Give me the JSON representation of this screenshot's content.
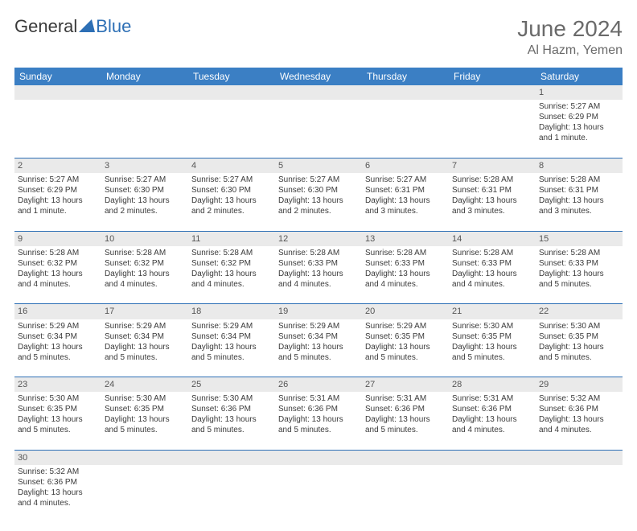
{
  "logo": {
    "text1": "General",
    "text2": "Blue"
  },
  "title": "June 2024",
  "location": "Al Hazm, Yemen",
  "weekdays": [
    "Sunday",
    "Monday",
    "Tuesday",
    "Wednesday",
    "Thursday",
    "Friday",
    "Saturday"
  ],
  "colors": {
    "header_bg": "#3b7fc4",
    "header_text": "#ffffff",
    "daynum_bg": "#eaeaea",
    "cell_border": "#2d6fb5",
    "text": "#3a3a3a",
    "title_text": "#6a6a6a"
  },
  "weeks": [
    {
      "nums": [
        "",
        "",
        "",
        "",
        "",
        "",
        "1"
      ],
      "cells": [
        "",
        "",
        "",
        "",
        "",
        "",
        "Sunrise: 5:27 AM\nSunset: 6:29 PM\nDaylight: 13 hours and 1 minute."
      ]
    },
    {
      "nums": [
        "2",
        "3",
        "4",
        "5",
        "6",
        "7",
        "8"
      ],
      "cells": [
        "Sunrise: 5:27 AM\nSunset: 6:29 PM\nDaylight: 13 hours and 1 minute.",
        "Sunrise: 5:27 AM\nSunset: 6:30 PM\nDaylight: 13 hours and 2 minutes.",
        "Sunrise: 5:27 AM\nSunset: 6:30 PM\nDaylight: 13 hours and 2 minutes.",
        "Sunrise: 5:27 AM\nSunset: 6:30 PM\nDaylight: 13 hours and 2 minutes.",
        "Sunrise: 5:27 AM\nSunset: 6:31 PM\nDaylight: 13 hours and 3 minutes.",
        "Sunrise: 5:28 AM\nSunset: 6:31 PM\nDaylight: 13 hours and 3 minutes.",
        "Sunrise: 5:28 AM\nSunset: 6:31 PM\nDaylight: 13 hours and 3 minutes."
      ]
    },
    {
      "nums": [
        "9",
        "10",
        "11",
        "12",
        "13",
        "14",
        "15"
      ],
      "cells": [
        "Sunrise: 5:28 AM\nSunset: 6:32 PM\nDaylight: 13 hours and 4 minutes.",
        "Sunrise: 5:28 AM\nSunset: 6:32 PM\nDaylight: 13 hours and 4 minutes.",
        "Sunrise: 5:28 AM\nSunset: 6:32 PM\nDaylight: 13 hours and 4 minutes.",
        "Sunrise: 5:28 AM\nSunset: 6:33 PM\nDaylight: 13 hours and 4 minutes.",
        "Sunrise: 5:28 AM\nSunset: 6:33 PM\nDaylight: 13 hours and 4 minutes.",
        "Sunrise: 5:28 AM\nSunset: 6:33 PM\nDaylight: 13 hours and 4 minutes.",
        "Sunrise: 5:28 AM\nSunset: 6:33 PM\nDaylight: 13 hours and 5 minutes."
      ]
    },
    {
      "nums": [
        "16",
        "17",
        "18",
        "19",
        "20",
        "21",
        "22"
      ],
      "cells": [
        "Sunrise: 5:29 AM\nSunset: 6:34 PM\nDaylight: 13 hours and 5 minutes.",
        "Sunrise: 5:29 AM\nSunset: 6:34 PM\nDaylight: 13 hours and 5 minutes.",
        "Sunrise: 5:29 AM\nSunset: 6:34 PM\nDaylight: 13 hours and 5 minutes.",
        "Sunrise: 5:29 AM\nSunset: 6:34 PM\nDaylight: 13 hours and 5 minutes.",
        "Sunrise: 5:29 AM\nSunset: 6:35 PM\nDaylight: 13 hours and 5 minutes.",
        "Sunrise: 5:30 AM\nSunset: 6:35 PM\nDaylight: 13 hours and 5 minutes.",
        "Sunrise: 5:30 AM\nSunset: 6:35 PM\nDaylight: 13 hours and 5 minutes."
      ]
    },
    {
      "nums": [
        "23",
        "24",
        "25",
        "26",
        "27",
        "28",
        "29"
      ],
      "cells": [
        "Sunrise: 5:30 AM\nSunset: 6:35 PM\nDaylight: 13 hours and 5 minutes.",
        "Sunrise: 5:30 AM\nSunset: 6:35 PM\nDaylight: 13 hours and 5 minutes.",
        "Sunrise: 5:30 AM\nSunset: 6:36 PM\nDaylight: 13 hours and 5 minutes.",
        "Sunrise: 5:31 AM\nSunset: 6:36 PM\nDaylight: 13 hours and 5 minutes.",
        "Sunrise: 5:31 AM\nSunset: 6:36 PM\nDaylight: 13 hours and 5 minutes.",
        "Sunrise: 5:31 AM\nSunset: 6:36 PM\nDaylight: 13 hours and 4 minutes.",
        "Sunrise: 5:32 AM\nSunset: 6:36 PM\nDaylight: 13 hours and 4 minutes."
      ]
    },
    {
      "nums": [
        "30",
        "",
        "",
        "",
        "",
        "",
        ""
      ],
      "cells": [
        "Sunrise: 5:32 AM\nSunset: 6:36 PM\nDaylight: 13 hours and 4 minutes.",
        "",
        "",
        "",
        "",
        "",
        ""
      ]
    }
  ]
}
